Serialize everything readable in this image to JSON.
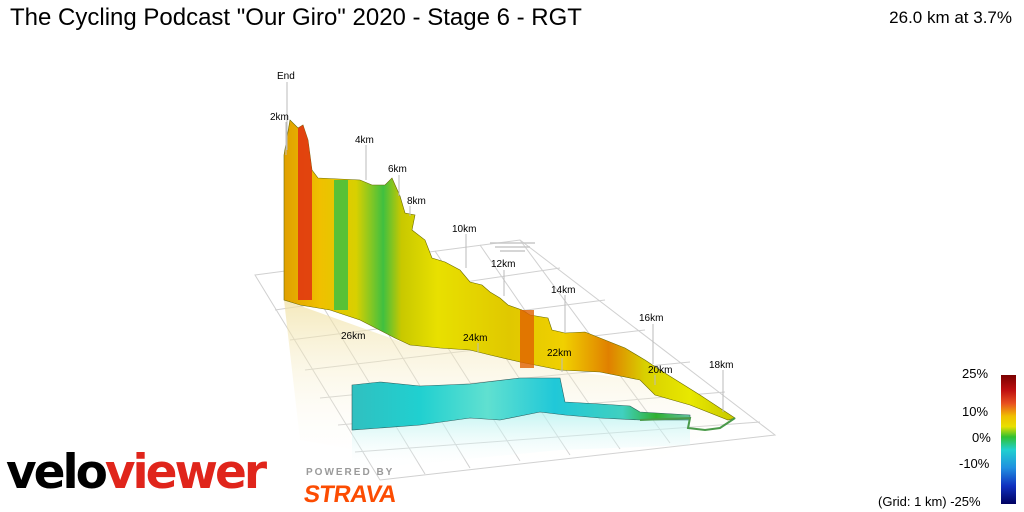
{
  "header": {
    "title": "The Cycling Podcast \"Our Giro\" 2020 - Stage 6 - RGT",
    "summary": "26.0 km at 3.7%"
  },
  "profile": {
    "km_markers": [
      "End",
      "2km",
      "4km",
      "6km",
      "8km",
      "10km",
      "12km",
      "14km",
      "16km",
      "18km",
      "20km",
      "22km",
      "24km",
      "26km"
    ]
  },
  "legend": {
    "gradient_labels": [
      "25%",
      "10%",
      "0%",
      "-10%"
    ],
    "grid_note": "(Grid: 1 km) -25%",
    "colors": {
      "steep": "#c01010",
      "moderate": "#e0c000",
      "flat": "#30c030",
      "descent": "#20d0d0",
      "steep_descent": "#000060"
    }
  },
  "branding": {
    "logo_part1": "velo",
    "logo_part2": "viewer",
    "powered_by": "POWERED BY",
    "strava": "STRAVA"
  }
}
